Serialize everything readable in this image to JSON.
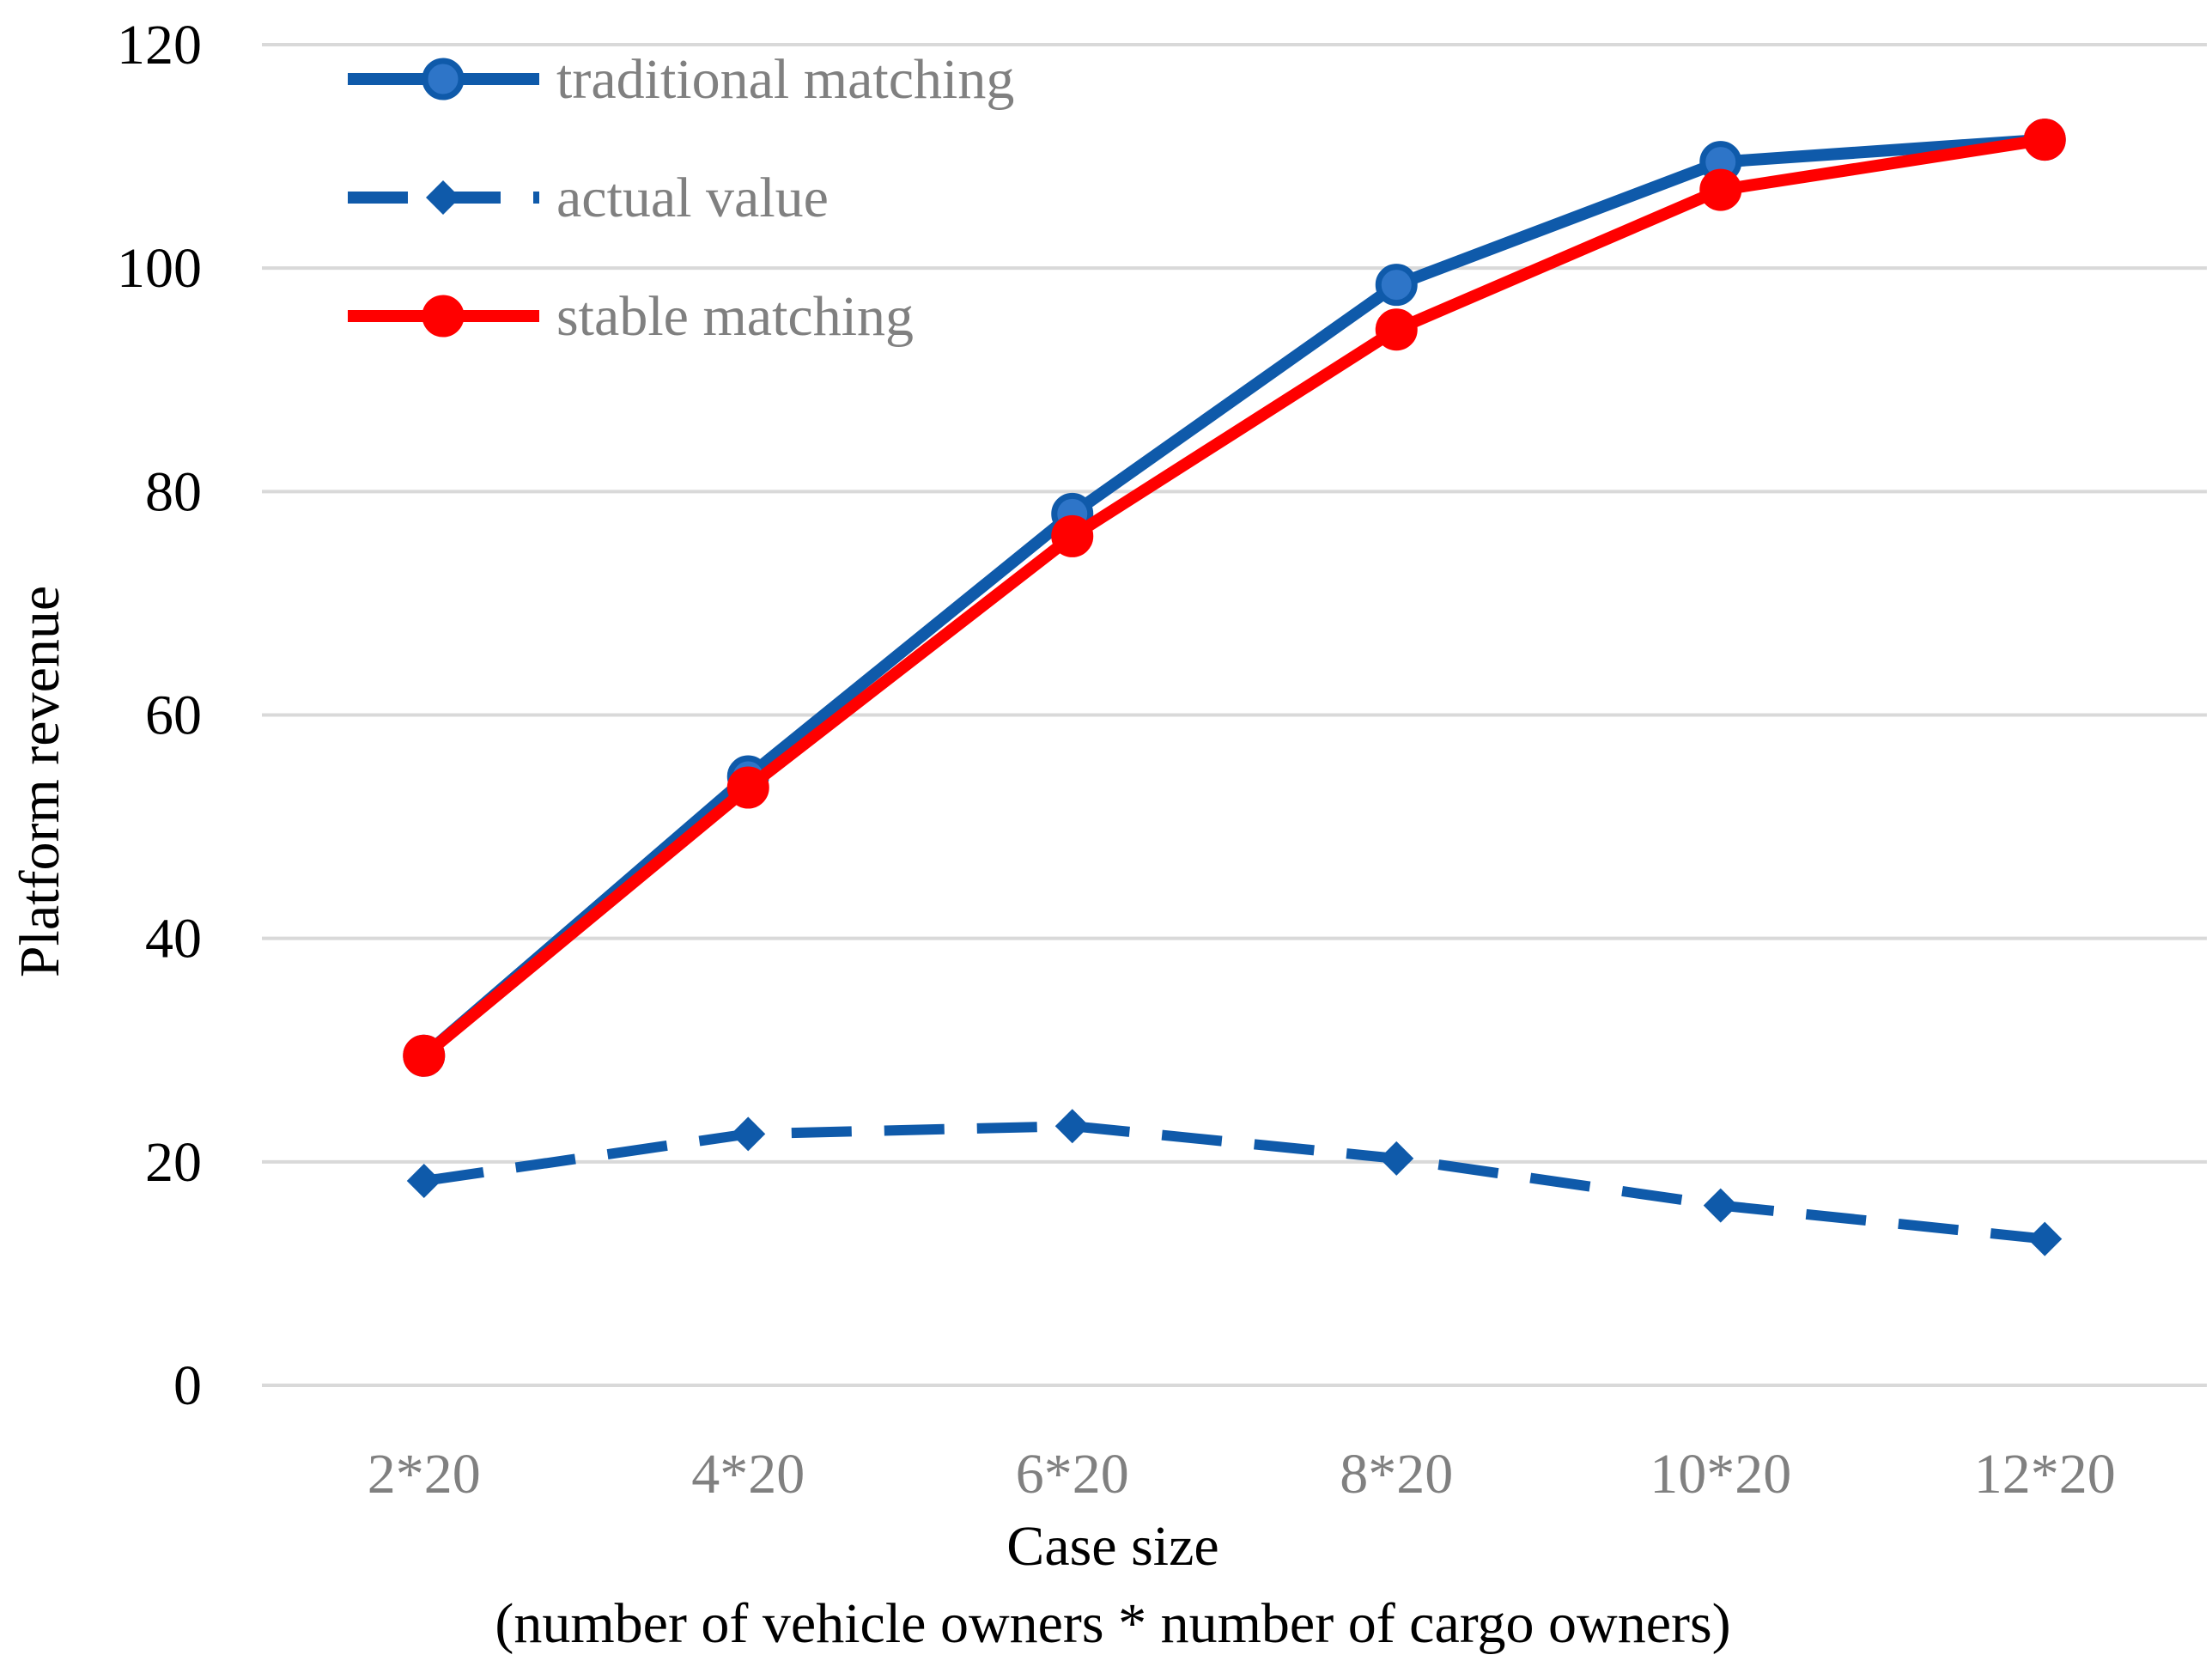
{
  "chart_data": {
    "type": "line",
    "categories": [
      "2*20",
      "4*20",
      "6*20",
      "8*20",
      "10*20",
      "12*20"
    ],
    "series": [
      {
        "name": "traditional matching",
        "values": [
          29.5,
          54.5,
          78,
          98.5,
          109.5,
          111.5
        ],
        "color": "#0F5AAA",
        "marker": "circle",
        "dash": "solid"
      },
      {
        "name": "actual value",
        "values": [
          18.3,
          22.5,
          23.2,
          20.3,
          16.1,
          13.1
        ],
        "color": "#0F5AAA",
        "marker": "diamond",
        "dash": "dashed"
      },
      {
        "name": "stable matching",
        "values": [
          29.5,
          53.5,
          76,
          94.5,
          107,
          111.5
        ],
        "color": "#FF0000",
        "marker": "circle",
        "dash": "solid"
      }
    ],
    "title": "",
    "xlabel": "Case size",
    "xlabel_sub": "(number of vehicle owners * number of cargo owners)",
    "ylabel": "Platform revenue",
    "ylim": [
      0,
      120
    ],
    "yticks": [
      0,
      20,
      40,
      60,
      80,
      100,
      120
    ],
    "grid": true,
    "legend": "top-left"
  }
}
